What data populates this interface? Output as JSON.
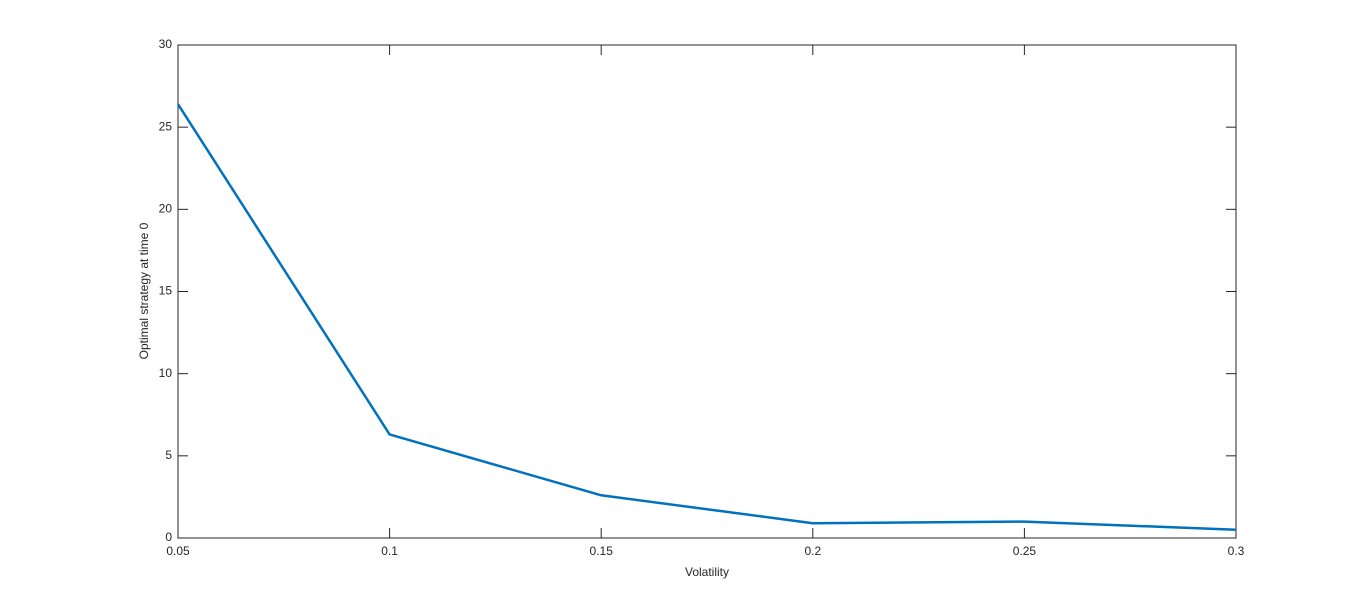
{
  "chart_data": {
    "type": "line",
    "x_label": "Volatility",
    "y_label": "Optimal strategy at time 0",
    "x": [
      0.05,
      0.1,
      0.15,
      0.2,
      0.25,
      0.3
    ],
    "series": [
      {
        "color": "#0072bd",
        "values": [
          26.4,
          6.3,
          2.6,
          0.9,
          1.0,
          0.5
        ]
      }
    ],
    "xlim": [
      0.05,
      0.3
    ],
    "xticks": [
      0.05,
      0.1,
      0.15,
      0.2,
      0.25,
      0.3
    ],
    "ylim": [
      0,
      30
    ],
    "yticks": [
      0,
      5,
      10,
      15,
      20,
      25,
      30
    ],
    "grid": false
  }
}
